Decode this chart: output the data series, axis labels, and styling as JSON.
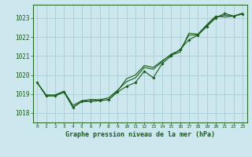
{
  "title": "Graphe pression niveau de la mer (hPa)",
  "bg_color": "#cce8ee",
  "grid_color": "#aacdd4",
  "line_color": "#1a5c1a",
  "spine_color": "#2d6e2d",
  "xlim": [
    -0.5,
    23.5
  ],
  "ylim": [
    1017.5,
    1023.7
  ],
  "yticks": [
    1018,
    1019,
    1020,
    1021,
    1022,
    1023
  ],
  "xticks": [
    0,
    1,
    2,
    3,
    4,
    5,
    6,
    7,
    8,
    9,
    10,
    11,
    12,
    13,
    14,
    15,
    16,
    17,
    18,
    19,
    20,
    21,
    22,
    23
  ],
  "line_main": [
    1019.6,
    1018.9,
    1018.9,
    1019.1,
    1018.3,
    1018.6,
    1018.6,
    1018.65,
    1018.7,
    1019.1,
    1019.4,
    1019.6,
    1020.2,
    1019.85,
    1020.6,
    1021.0,
    1021.35,
    1021.85,
    1022.1,
    1022.55,
    1023.0,
    1023.25,
    1023.1,
    1023.2
  ],
  "line_upper": [
    1019.6,
    1018.9,
    1018.9,
    1019.1,
    1018.3,
    1018.6,
    1018.7,
    1018.65,
    1018.7,
    1019.15,
    1019.8,
    1020.0,
    1020.5,
    1020.4,
    1020.75,
    1021.05,
    1021.2,
    1022.2,
    1022.15,
    1022.65,
    1023.1,
    1023.05,
    1023.1,
    1023.25
  ],
  "line_smooth": [
    1019.6,
    1018.95,
    1018.95,
    1019.15,
    1018.4,
    1018.65,
    1018.7,
    1018.7,
    1018.8,
    1019.2,
    1019.65,
    1019.85,
    1020.4,
    1020.3,
    1020.7,
    1021.1,
    1021.3,
    1022.1,
    1022.1,
    1022.6,
    1023.05,
    1023.15,
    1023.1,
    1023.25
  ]
}
